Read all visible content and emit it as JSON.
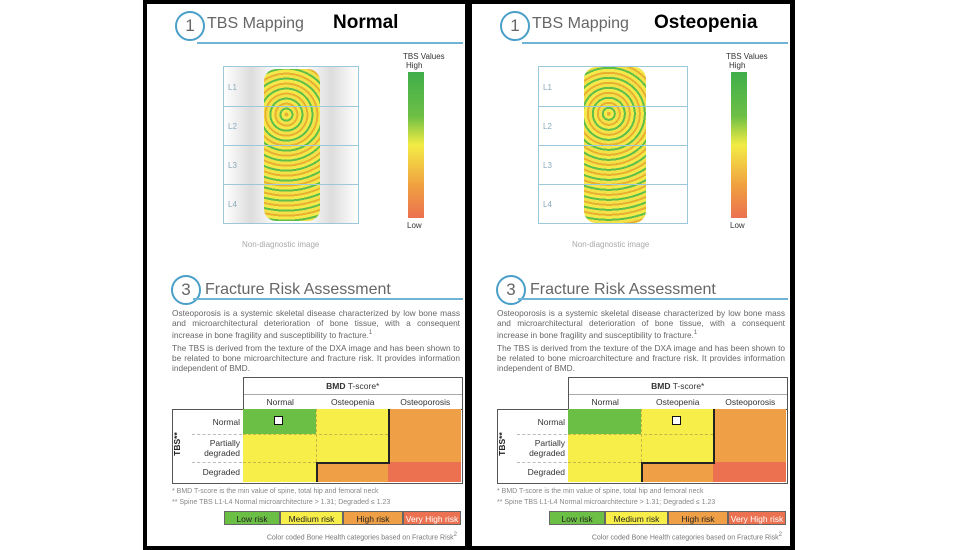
{
  "panels": [
    {
      "condition": "Normal",
      "marker": {
        "tbs_row": 0,
        "bmd_col": 0
      },
      "spine_shade": "#d8d8d8"
    },
    {
      "condition": "Osteopenia",
      "marker": {
        "tbs_row": 0,
        "bmd_col": 1
      },
      "spine_shade": "#ffffff"
    }
  ],
  "common": {
    "section1": {
      "number": "1",
      "title": "TBS Mapping"
    },
    "vertebrae": [
      "L1",
      "L2",
      "L3",
      "L4"
    ],
    "colorbar": {
      "title": "TBS Values",
      "high": "High",
      "low": "Low"
    },
    "image_caption": "Non-diagnostic image",
    "section3": {
      "number": "3",
      "title": "Fracture Risk Assessment"
    },
    "para1": "Osteoporosis is a systemic skeletal disease characterized by low bone mass and microarchitectural deterioration of bone tissue, with a consequent increase in bone fragility and susceptibility to fracture.",
    "para1_ref": "1",
    "para2": "The TBS is derived from the texture of the DXA image and has been shown to be related to bone microarchitecture and fracture risk. It provides information independent of BMD.",
    "table": {
      "bmd_header_bold": "BMD",
      "bmd_header_rest": " T-score*",
      "tbs_header": "TBS**",
      "columns": [
        "Normal",
        "Osteopenia",
        "Osteoporosis"
      ],
      "rows": [
        "Normal",
        "Partially degraded",
        "Degraded"
      ],
      "risk": [
        [
          "low",
          "medium",
          "high"
        ],
        [
          "medium",
          "medium",
          "high"
        ],
        [
          "medium",
          "high",
          "very_high"
        ]
      ]
    },
    "footnote1": "* BMD T-score is the min value of spine, total hip and femoral neck",
    "footnote2": "** Spine TBS L1-L4 Normal microarchitecture > 1.31; Degraded ≤ 1.23",
    "legend": [
      {
        "key": "low",
        "label": "Low risk",
        "color": "#6cbf45",
        "text": "#222"
      },
      {
        "key": "medium",
        "label": "Medium risk",
        "color": "#f7ee4a",
        "text": "#222"
      },
      {
        "key": "high",
        "label": "High risk",
        "color": "#ef9f45",
        "text": "#222"
      },
      {
        "key": "very_high",
        "label": "Very High risk",
        "color": "#eb7150",
        "text": "#fff"
      }
    ],
    "caption": "Color coded Bone Health categories based on Fracture Risk",
    "caption_ref": "2"
  }
}
